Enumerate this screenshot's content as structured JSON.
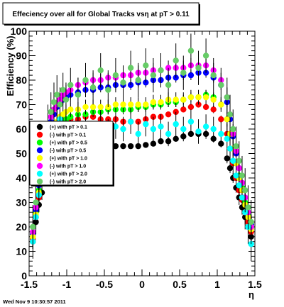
{
  "chart_data": {
    "type": "scatter",
    "title": "Effeciency over all for Global Tracks vsη at pT > 0.11",
    "xlabel": "η",
    "ylabel": "Efficiency (%)",
    "xlim": [
      -1.5,
      1.5
    ],
    "ylim": [
      0,
      100
    ],
    "x_ticks": [
      "-1.5",
      "-1",
      "-0.5",
      "0",
      "0.5",
      "1",
      "1.5"
    ],
    "y_ticks": [
      "0",
      "10",
      "20",
      "30",
      "40",
      "50",
      "60",
      "70",
      "80",
      "90",
      "100"
    ],
    "grid": false,
    "legend_position": "left",
    "series": [
      {
        "name": "(+) with pT > 0.1",
        "color": "#000000",
        "x": [
          -1.45,
          -1.41,
          -1.37,
          -1.33,
          -1.29,
          -1.25,
          -1.21,
          -1.17,
          -1.13,
          -1.09,
          -1.05,
          -1.01,
          -0.95,
          -0.85,
          -0.75,
          -0.65,
          -0.55,
          -0.45,
          -0.35,
          -0.25,
          -0.15,
          -0.05,
          0.05,
          0.15,
          0.25,
          0.35,
          0.45,
          0.55,
          0.65,
          0.75,
          0.85,
          0.95,
          1.05,
          1.13,
          1.17,
          1.21,
          1.25,
          1.29,
          1.33,
          1.37,
          1.41,
          1.45
        ],
        "y": [
          14,
          22,
          29,
          34,
          39,
          44,
          48,
          51,
          54,
          56,
          57,
          57,
          56,
          55,
          54,
          54,
          53,
          53,
          53,
          53,
          53,
          53,
          53.5,
          54,
          55,
          55,
          56,
          57,
          58,
          58,
          58,
          56,
          54,
          48,
          44,
          40,
          36,
          32,
          28,
          24,
          20,
          16
        ],
        "err": [
          3,
          3,
          3,
          3,
          2,
          2,
          2,
          2,
          2,
          1.5,
          1.5,
          1.5,
          1.5,
          1,
          1,
          1,
          1,
          1,
          1,
          1,
          1,
          1,
          1,
          1,
          1,
          1,
          1,
          1,
          1,
          1,
          1,
          1.5,
          1.5,
          2,
          2,
          2,
          2,
          3,
          3,
          3,
          3,
          3
        ]
      },
      {
        "name": "(-) with pT > 0.1",
        "color": "#ff0000",
        "x": [
          -1.45,
          -1.41,
          -1.37,
          -1.33,
          -1.29,
          -1.25,
          -1.21,
          -1.17,
          -1.13,
          -1.09,
          -1.05,
          -1.01,
          -0.95,
          -0.85,
          -0.75,
          -0.65,
          -0.55,
          -0.45,
          -0.35,
          -0.25,
          -0.15,
          -0.05,
          0.05,
          0.15,
          0.25,
          0.35,
          0.45,
          0.55,
          0.65,
          0.75,
          0.85,
          0.95,
          1.05,
          1.13,
          1.17,
          1.21,
          1.25,
          1.29,
          1.33,
          1.37,
          1.41,
          1.45
        ],
        "y": [
          15,
          24,
          32,
          38,
          43,
          48,
          52,
          56,
          59,
          61,
          62,
          63,
          64,
          64,
          65,
          65,
          64,
          64,
          64,
          63,
          63,
          63,
          64,
          65,
          65,
          66,
          67,
          68,
          69,
          70,
          69,
          68,
          64,
          58,
          52,
          46,
          40,
          35,
          31,
          26,
          22,
          18
        ],
        "err": [
          3,
          3,
          3,
          3,
          2,
          2,
          2,
          2,
          2,
          1.5,
          1.5,
          1.5,
          1.5,
          1,
          1,
          1,
          1,
          1,
          1,
          1,
          1,
          1,
          1,
          1,
          1,
          1,
          1,
          1,
          1,
          1,
          1,
          1.5,
          1.5,
          2,
          2,
          2,
          2,
          3,
          3,
          3,
          3,
          3
        ]
      },
      {
        "name": "(+) with pT > 0.5",
        "color": "#00ff00",
        "x": [
          -1.45,
          -1.41,
          -1.37,
          -1.33,
          -1.29,
          -1.25,
          -1.21,
          -1.17,
          -1.13,
          -1.09,
          -1.05,
          -1.01,
          -0.95,
          -0.85,
          -0.75,
          -0.65,
          -0.55,
          -0.45,
          -0.35,
          -0.25,
          -0.15,
          -0.05,
          0.05,
          0.15,
          0.25,
          0.35,
          0.45,
          0.55,
          0.65,
          0.75,
          0.85,
          0.95,
          1.05,
          1.13,
          1.17,
          1.21,
          1.25,
          1.29,
          1.33,
          1.37,
          1.41,
          1.45
        ],
        "y": [
          16,
          26,
          35,
          42,
          47,
          52,
          56,
          59,
          61,
          62,
          63,
          64,
          65,
          66,
          66,
          67,
          67,
          68,
          68,
          68,
          68,
          69,
          69,
          70,
          70,
          71,
          71,
          72,
          73,
          73,
          74,
          73,
          70,
          64,
          58,
          52,
          46,
          41,
          36,
          30,
          25,
          20
        ],
        "err": [
          4,
          4,
          4,
          3,
          3,
          3,
          3,
          3,
          3,
          2,
          2,
          2,
          2,
          2,
          2,
          2,
          2,
          2,
          2,
          2,
          2,
          2,
          2,
          2,
          2,
          2,
          2,
          2,
          2,
          2,
          2,
          2,
          2,
          3,
          3,
          3,
          3,
          3,
          3,
          4,
          4,
          4
        ]
      },
      {
        "name": "(-) with pT > 0.5",
        "color": "#0000ff",
        "x": [
          -1.45,
          -1.41,
          -1.37,
          -1.33,
          -1.29,
          -1.25,
          -1.21,
          -1.17,
          -1.13,
          -1.09,
          -1.05,
          -1.01,
          -0.95,
          -0.85,
          -0.75,
          -0.65,
          -0.55,
          -0.45,
          -0.35,
          -0.25,
          -0.15,
          -0.05,
          0.05,
          0.15,
          0.25,
          0.35,
          0.45,
          0.55,
          0.65,
          0.75,
          0.85,
          0.95,
          1.05,
          1.13,
          1.17,
          1.21,
          1.25,
          1.29,
          1.33,
          1.37,
          1.41,
          1.45
        ],
        "y": [
          17,
          27,
          37,
          45,
          52,
          58,
          63,
          66,
          69,
          71,
          72,
          73,
          74,
          75,
          76,
          76,
          77,
          77,
          78,
          78,
          78,
          79,
          79,
          80,
          80,
          81,
          81,
          82,
          82,
          83,
          83,
          81,
          78,
          71,
          64,
          57,
          50,
          44,
          38,
          32,
          26,
          21
        ],
        "err": [
          4,
          4,
          4,
          3,
          3,
          3,
          3,
          3,
          3,
          2,
          2,
          2,
          2,
          2,
          2,
          2,
          2,
          2,
          2,
          2,
          2,
          2,
          2,
          2,
          2,
          2,
          2,
          2,
          2,
          2,
          2,
          2,
          2,
          3,
          3,
          3,
          3,
          3,
          3,
          4,
          4,
          4
        ]
      },
      {
        "name": "(+) with pT > 1.0",
        "color": "#ffff00",
        "x": [
          -1.45,
          -1.41,
          -1.37,
          -1.33,
          -1.29,
          -1.25,
          -1.21,
          -1.17,
          -1.13,
          -1.09,
          -1.05,
          -1.01,
          -0.95,
          -0.85,
          -0.75,
          -0.65,
          -0.55,
          -0.45,
          -0.35,
          -0.25,
          -0.15,
          -0.05,
          0.05,
          0.15,
          0.25,
          0.35,
          0.45,
          0.55,
          0.65,
          0.75,
          0.85,
          0.95,
          1.05,
          1.13,
          1.17,
          1.21,
          1.25,
          1.29,
          1.33,
          1.37,
          1.41,
          1.45
        ],
        "y": [
          16,
          25,
          34,
          41,
          47,
          52,
          57,
          60,
          63,
          65,
          66,
          67,
          68,
          68,
          69,
          69,
          69,
          69,
          70,
          70,
          70,
          70,
          70,
          71,
          71,
          72,
          72,
          72,
          73,
          73,
          73,
          72,
          70,
          64,
          58,
          52,
          46,
          40,
          35,
          29,
          24,
          19
        ],
        "err": [
          5,
          5,
          5,
          4,
          4,
          4,
          4,
          4,
          4,
          3,
          3,
          3,
          3,
          3,
          3,
          3,
          3,
          3,
          3,
          3,
          3,
          3,
          3,
          3,
          3,
          3,
          3,
          3,
          3,
          3,
          3,
          3,
          3,
          4,
          4,
          4,
          4,
          4,
          4,
          5,
          5,
          5
        ]
      },
      {
        "name": "(-) with pT > 1.0",
        "color": "#ff00ff",
        "x": [
          -1.45,
          -1.41,
          -1.37,
          -1.33,
          -1.29,
          -1.25,
          -1.21,
          -1.17,
          -1.13,
          -1.09,
          -1.05,
          -1.01,
          -0.95,
          -0.85,
          -0.75,
          -0.65,
          -0.55,
          -0.45,
          -0.35,
          -0.25,
          -0.15,
          -0.05,
          0.05,
          0.15,
          0.25,
          0.35,
          0.45,
          0.55,
          0.65,
          0.75,
          0.85,
          0.95,
          1.05,
          1.13,
          1.17,
          1.21,
          1.25,
          1.29,
          1.33,
          1.37,
          1.41,
          1.45
        ],
        "y": [
          18,
          28,
          38,
          47,
          54,
          60,
          65,
          68,
          70,
          72,
          74,
          75,
          76,
          78,
          79,
          80,
          80,
          81,
          81,
          82,
          82,
          83,
          83,
          84,
          84,
          85,
          85,
          85,
          86,
          86,
          86,
          84,
          80,
          73,
          66,
          58,
          51,
          44,
          38,
          32,
          26,
          20
        ],
        "err": [
          5,
          5,
          5,
          4,
          4,
          4,
          4,
          4,
          4,
          3,
          3,
          3,
          3,
          3,
          3,
          3,
          3,
          3,
          3,
          3,
          3,
          3,
          3,
          3,
          3,
          3,
          3,
          3,
          3,
          3,
          3,
          3,
          3,
          4,
          4,
          4,
          4,
          4,
          4,
          5,
          5,
          5
        ]
      },
      {
        "name": "(+) with pT > 2.0",
        "color": "#00ffff",
        "x": [
          -1.45,
          -1.41,
          -1.37,
          -1.33,
          -1.29,
          -1.25,
          -1.21,
          -1.17,
          -1.13,
          -1.09,
          -1.05,
          -1.01,
          -0.95,
          -0.85,
          -0.75,
          -0.65,
          -0.55,
          -0.45,
          -0.35,
          -0.25,
          -0.15,
          -0.05,
          0.05,
          0.15,
          0.25,
          0.35,
          0.45,
          0.55,
          0.65,
          0.75,
          0.85,
          0.95,
          1.05,
          1.13,
          1.17,
          1.21,
          1.25,
          1.29,
          1.33,
          1.37,
          1.41,
          1.45
        ],
        "y": [
          14,
          24,
          33,
          40,
          46,
          51,
          56,
          58,
          61,
          64,
          60,
          62,
          58,
          61,
          60,
          58,
          62,
          59,
          61,
          60,
          63,
          58,
          62,
          60,
          61,
          58,
          62,
          60,
          63,
          59,
          61,
          60,
          58,
          56,
          52,
          47,
          41,
          37,
          32,
          26,
          20,
          13
        ],
        "err": [
          7,
          7,
          7,
          6,
          6,
          6,
          6,
          6,
          6,
          5,
          5,
          5,
          5,
          5,
          5,
          5,
          5,
          5,
          5,
          5,
          5,
          5,
          5,
          5,
          5,
          5,
          5,
          5,
          5,
          5,
          5,
          5,
          5,
          6,
          6,
          6,
          6,
          6,
          6,
          7,
          7,
          7
        ]
      },
      {
        "name": "(-) with pT > 2.0",
        "color": "#66cc66",
        "x": [
          -1.45,
          -1.41,
          -1.37,
          -1.33,
          -1.29,
          -1.25,
          -1.21,
          -1.17,
          -1.13,
          -1.09,
          -1.05,
          -1.01,
          -0.95,
          -0.85,
          -0.75,
          -0.65,
          -0.55,
          -0.45,
          -0.35,
          -0.25,
          -0.15,
          -0.05,
          0.05,
          0.15,
          0.25,
          0.35,
          0.45,
          0.55,
          0.65,
          0.75,
          0.85,
          0.95,
          1.05,
          1.13,
          1.17,
          1.21,
          1.25,
          1.29,
          1.33,
          1.37,
          1.41,
          1.45
        ],
        "y": [
          20,
          30,
          40,
          48,
          55,
          62,
          67,
          71,
          74,
          70,
          76,
          72,
          78,
          74,
          80,
          77,
          84,
          76,
          82,
          79,
          85,
          80,
          86,
          82,
          84,
          78,
          88,
          83,
          92,
          85,
          90,
          82,
          78,
          73,
          66,
          60,
          53,
          47,
          41,
          35,
          28,
          22
        ],
        "err": [
          9,
          9,
          9,
          8,
          8,
          8,
          8,
          8,
          8,
          7,
          7,
          7,
          7,
          7,
          7,
          7,
          7,
          7,
          7,
          7,
          7,
          7,
          7,
          7,
          7,
          7,
          7,
          7,
          7,
          7,
          7,
          7,
          7,
          8,
          8,
          8,
          8,
          8,
          8,
          9,
          9,
          9
        ]
      }
    ]
  },
  "footer": {
    "timestamp": "Wed Nov  9 10:30:57 2011"
  }
}
